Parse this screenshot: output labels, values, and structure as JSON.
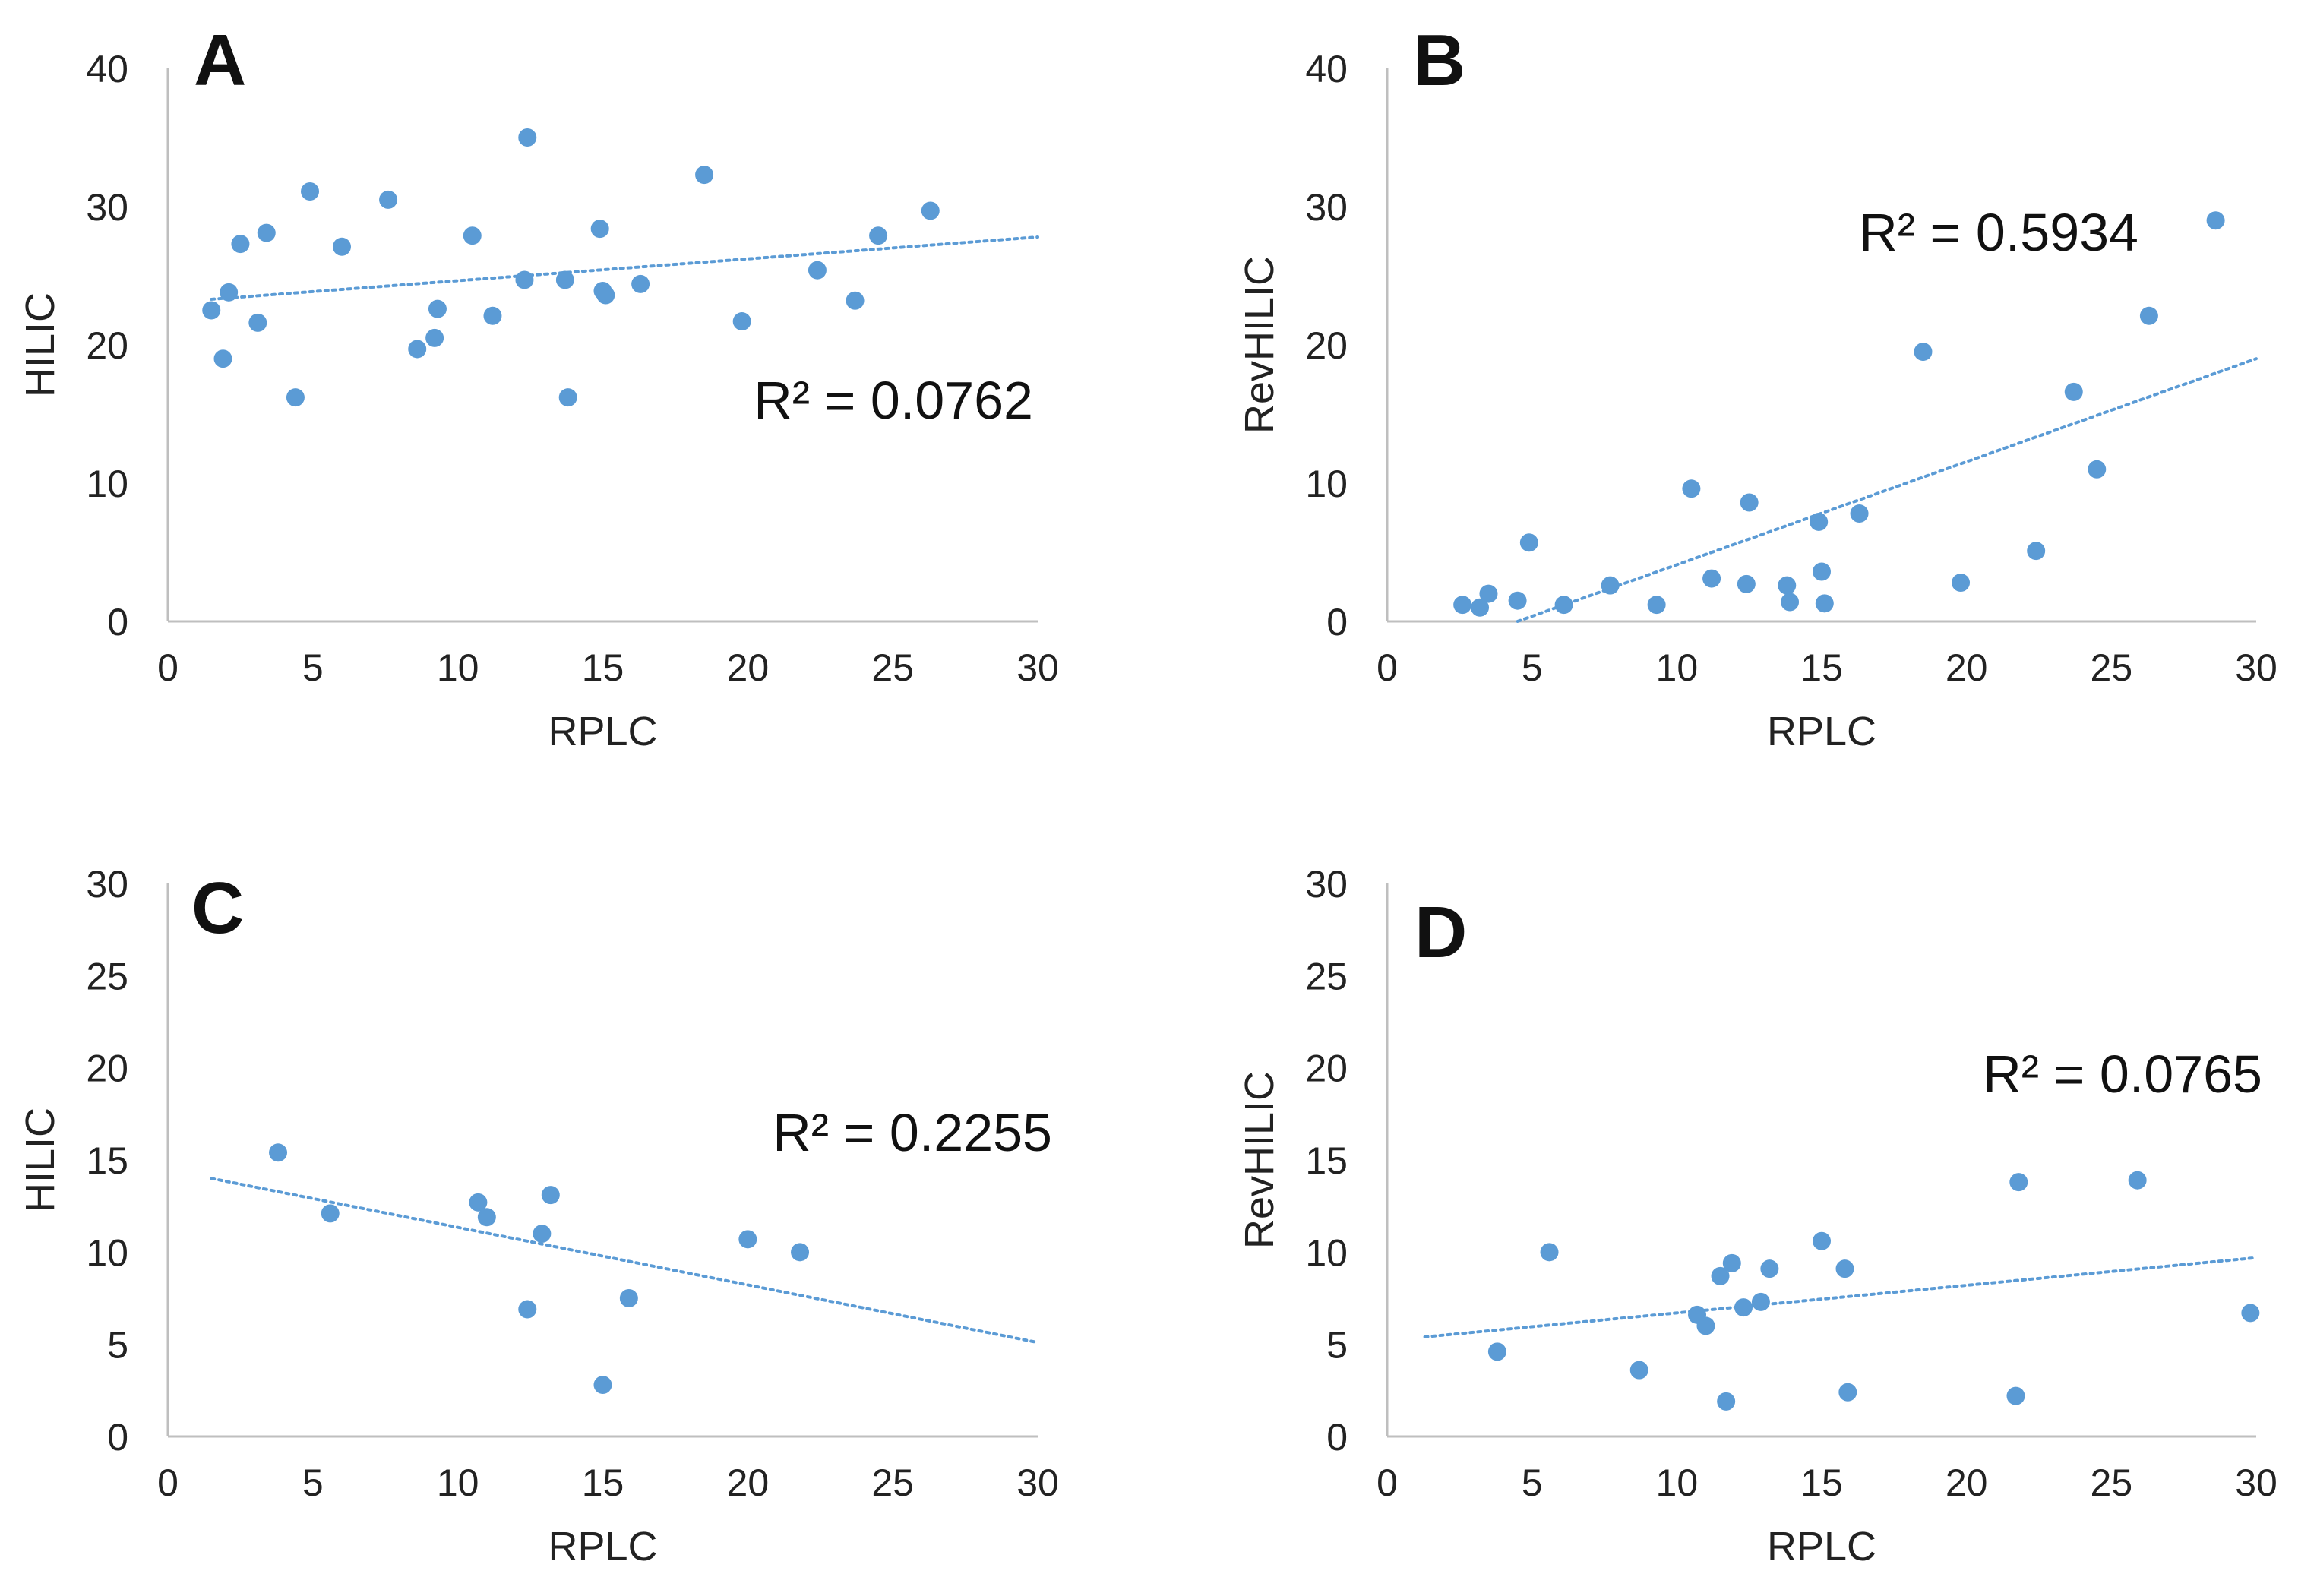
{
  "colors": {
    "point": "#5b9bd5",
    "trend": "#5b9bd5",
    "axis": "#bfbfbf",
    "text": "#222222"
  },
  "chart_data": [
    {
      "type": "scatter",
      "panel": "A",
      "xlabel": "RPLC",
      "ylabel": "HILIC",
      "xlim": [
        0,
        30
      ],
      "ylim": [
        0,
        40
      ],
      "xticks": [
        "0",
        "5",
        "10",
        "15",
        "20",
        "25",
        "30"
      ],
      "yticks": [
        "0",
        "10",
        "20",
        "30",
        "40"
      ],
      "annotation": "R² = 0.0762",
      "trendline": {
        "x": [
          1.5,
          30
        ],
        "y": [
          23.3,
          27.8
        ]
      },
      "points": [
        [
          1.5,
          22.5
        ],
        [
          1.9,
          19.0
        ],
        [
          2.1,
          23.8
        ],
        [
          2.5,
          27.3
        ],
        [
          3.1,
          21.6
        ],
        [
          3.4,
          28.1
        ],
        [
          4.4,
          16.2
        ],
        [
          4.9,
          31.1
        ],
        [
          6.0,
          27.1
        ],
        [
          7.6,
          30.5
        ],
        [
          8.6,
          19.7
        ],
        [
          9.2,
          20.5
        ],
        [
          9.3,
          22.6
        ],
        [
          10.5,
          27.9
        ],
        [
          11.2,
          22.1
        ],
        [
          12.3,
          24.7
        ],
        [
          12.4,
          35.0
        ],
        [
          13.7,
          24.7
        ],
        [
          13.8,
          16.2
        ],
        [
          14.9,
          28.4
        ],
        [
          15.0,
          23.9
        ],
        [
          15.1,
          23.6
        ],
        [
          16.3,
          24.4
        ],
        [
          18.5,
          32.3
        ],
        [
          19.8,
          21.7
        ],
        [
          22.4,
          25.4
        ],
        [
          23.7,
          23.2
        ],
        [
          24.5,
          27.9
        ],
        [
          26.3,
          29.7
        ]
      ]
    },
    {
      "type": "scatter",
      "panel": "B",
      "xlabel": "RPLC",
      "ylabel": "RevHILIC",
      "xlim": [
        0,
        30
      ],
      "ylim": [
        0,
        40
      ],
      "xticks": [
        "0",
        "5",
        "10",
        "15",
        "20",
        "25",
        "30"
      ],
      "yticks": [
        "0",
        "10",
        "20",
        "30",
        "40"
      ],
      "annotation": "R² = 0.5934",
      "trendline": {
        "x": [
          4.5,
          30
        ],
        "y": [
          0,
          19.0
        ]
      },
      "points": [
        [
          2.6,
          1.2
        ],
        [
          3.2,
          1.0
        ],
        [
          3.5,
          2.0
        ],
        [
          4.5,
          1.5
        ],
        [
          4.9,
          5.7
        ],
        [
          6.1,
          1.2
        ],
        [
          7.7,
          2.6
        ],
        [
          9.3,
          1.2
        ],
        [
          10.5,
          9.6
        ],
        [
          11.2,
          3.1
        ],
        [
          12.4,
          2.7
        ],
        [
          12.5,
          8.6
        ],
        [
          13.8,
          2.6
        ],
        [
          13.9,
          1.4
        ],
        [
          14.9,
          7.2
        ],
        [
          15.0,
          3.6
        ],
        [
          15.1,
          1.3
        ],
        [
          16.3,
          7.8
        ],
        [
          18.5,
          19.5
        ],
        [
          19.8,
          2.8
        ],
        [
          22.4,
          5.1
        ],
        [
          23.7,
          16.6
        ],
        [
          24.5,
          11.0
        ],
        [
          26.3,
          22.1
        ],
        [
          28.6,
          29.0
        ]
      ]
    },
    {
      "type": "scatter",
      "panel": "C",
      "xlabel": "RPLC",
      "ylabel": "HILIC",
      "xlim": [
        0,
        30
      ],
      "ylim": [
        0,
        30
      ],
      "xticks": [
        "0",
        "5",
        "10",
        "15",
        "20",
        "25",
        "30"
      ],
      "yticks": [
        "0",
        "5",
        "10",
        "15",
        "20",
        "25",
        "30"
      ],
      "annotation": "R² = 0.2255",
      "trendline": {
        "x": [
          1.5,
          30
        ],
        "y": [
          14.0,
          5.1
        ]
      },
      "points": [
        [
          3.8,
          15.4
        ],
        [
          5.6,
          12.1
        ],
        [
          10.7,
          12.7
        ],
        [
          11.0,
          11.9
        ],
        [
          12.4,
          6.9
        ],
        [
          12.9,
          11.0
        ],
        [
          13.2,
          13.1
        ],
        [
          15.0,
          2.8
        ],
        [
          15.9,
          7.5
        ],
        [
          20.0,
          10.7
        ],
        [
          21.8,
          10.0
        ]
      ]
    },
    {
      "type": "scatter",
      "panel": "D",
      "xlabel": "RPLC",
      "ylabel": "RevHILIC",
      "xlim": [
        0,
        30
      ],
      "ylim": [
        0,
        30
      ],
      "xticks": [
        "0",
        "5",
        "10",
        "15",
        "20",
        "25",
        "30"
      ],
      "yticks": [
        "0",
        "5",
        "10",
        "15",
        "20",
        "25",
        "30"
      ],
      "annotation": "R² = 0.0765",
      "trendline": {
        "x": [
          1.3,
          30
        ],
        "y": [
          5.4,
          9.7
        ]
      },
      "points": [
        [
          3.8,
          4.6
        ],
        [
          5.6,
          10.0
        ],
        [
          8.7,
          3.6
        ],
        [
          10.7,
          6.6
        ],
        [
          11.0,
          6.0
        ],
        [
          11.5,
          8.7
        ],
        [
          11.7,
          1.9
        ],
        [
          11.9,
          9.4
        ],
        [
          12.3,
          7.0
        ],
        [
          12.9,
          7.3
        ],
        [
          13.2,
          9.1
        ],
        [
          15.0,
          10.6
        ],
        [
          15.8,
          9.1
        ],
        [
          15.9,
          2.4
        ],
        [
          21.7,
          2.2
        ],
        [
          21.8,
          13.8
        ],
        [
          25.9,
          13.9
        ],
        [
          29.8,
          6.7
        ]
      ]
    }
  ]
}
